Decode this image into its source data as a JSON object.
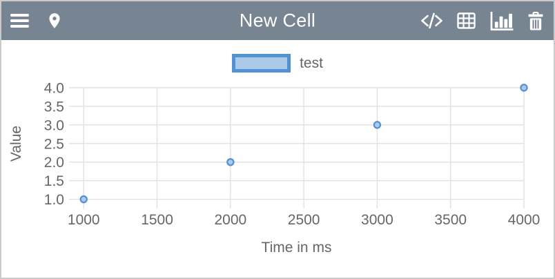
{
  "header": {
    "title": "New Cell",
    "background_color": "#768591",
    "icon_color": "#FFFFFF"
  },
  "card": {
    "border_color": "#CBCBCB",
    "background_color": "#FFFFFF"
  },
  "legend": {
    "label": "test"
  },
  "chart_data": {
    "type": "scatter",
    "series": [
      {
        "name": "test",
        "x": [
          1000,
          2000,
          3000,
          4000
        ],
        "y": [
          1.0,
          2.0,
          3.0,
          4.0
        ]
      }
    ],
    "title": "",
    "xlabel": "Time in ms",
    "ylabel": "Value",
    "x_tick_values": [
      1000,
      1500,
      2000,
      2500,
      3000,
      3500,
      4000
    ],
    "x_tick_labels": [
      "1000",
      "1500",
      "2000",
      "2500",
      "3000",
      "3500",
      "4000"
    ],
    "y_tick_values": [
      1.0,
      1.5,
      2.0,
      2.5,
      3.0,
      3.5,
      4.0
    ],
    "y_tick_labels": [
      "1.0",
      "1.5",
      "2.0",
      "2.5",
      "3.0",
      "3.5",
      "4.0"
    ],
    "xlim": [
      900,
      4000
    ],
    "ylim": [
      0.75,
      4.0
    ],
    "grid": true,
    "grid_color": "#E1E1E1",
    "legend_position": "top-center",
    "marker_fill": "#ACC9EA",
    "marker_stroke": "#5291D2",
    "text_color": "#666666"
  }
}
